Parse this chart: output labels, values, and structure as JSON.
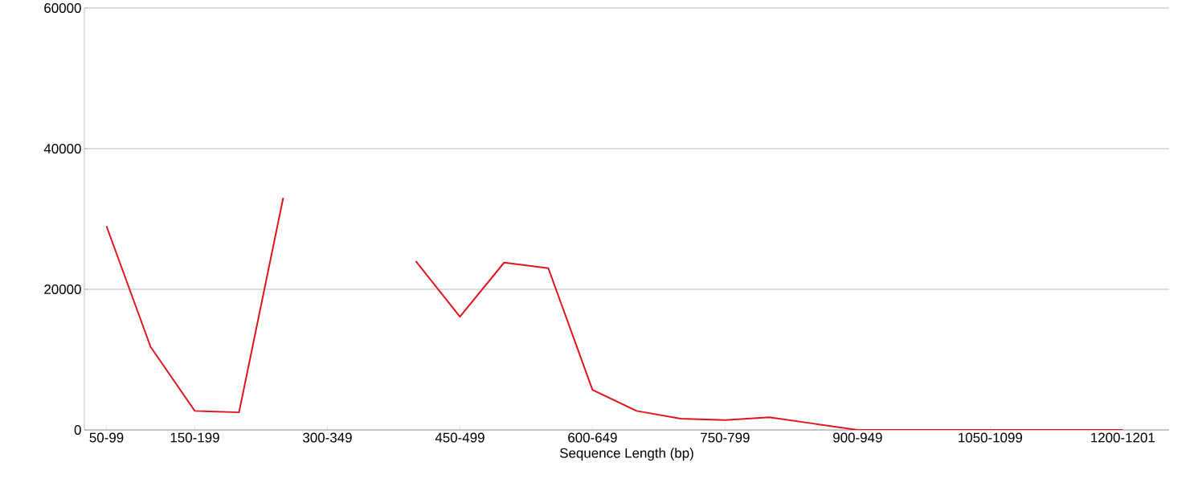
{
  "chart_data": {
    "type": "line",
    "xlabel": "Sequence Length (bp)",
    "categories": [
      "50-99",
      null,
      "150-199",
      null,
      null,
      "300-349",
      null,
      null,
      "450-499",
      null,
      null,
      "600-649",
      null,
      null,
      "750-799",
      null,
      null,
      "900-949",
      null,
      null,
      "1050-1099",
      null,
      null,
      "1200-1201"
    ],
    "series": [
      {
        "color": "#e0141c",
        "values": [
          29000,
          11800,
          2700,
          2500,
          33000,
          null,
          null,
          24000,
          16100,
          23800,
          23000,
          5700,
          2700,
          1600,
          1400,
          1800,
          900,
          0,
          0,
          0,
          0,
          0,
          0,
          0
        ]
      }
    ],
    "ylim": [
      0,
      60000
    ],
    "yticks": [
      0,
      20000,
      40000,
      60000
    ],
    "grid": "y"
  }
}
